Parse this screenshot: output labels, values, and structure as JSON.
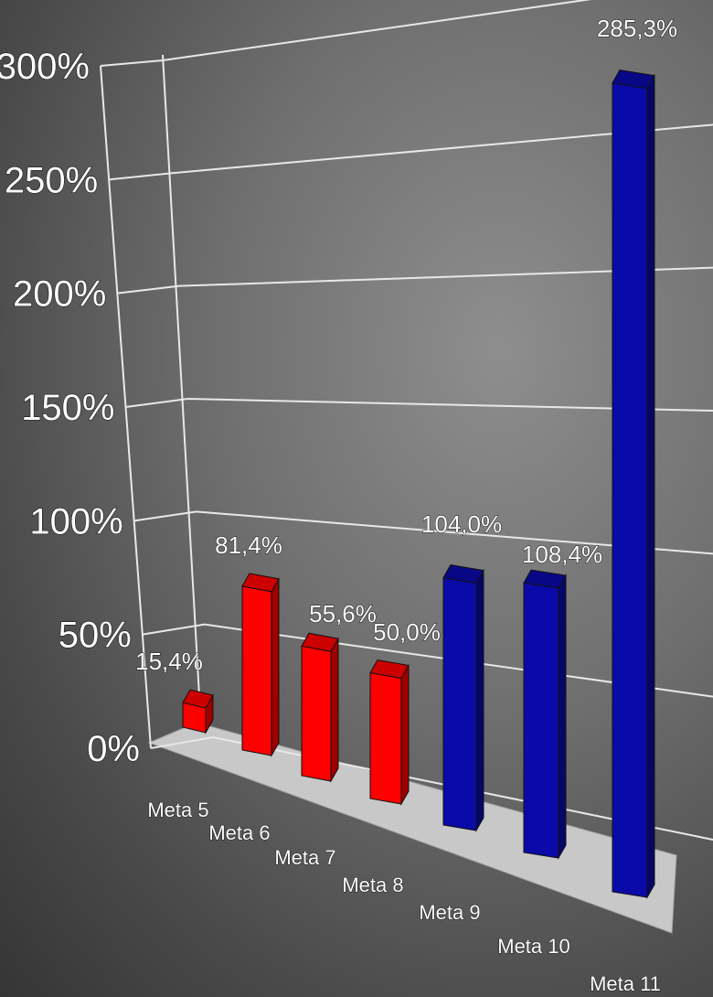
{
  "chart_data": {
    "type": "bar",
    "title": "",
    "xlabel": "",
    "ylabel": "",
    "ylim": [
      0,
      300
    ],
    "yticks": [
      "0%",
      "50%",
      "100%",
      "150%",
      "200%",
      "250%",
      "300%"
    ],
    "categories": [
      "Meta 5",
      "Meta 6",
      "Meta 7",
      "Meta 8",
      "Meta 9",
      "Meta 10",
      "Meta 11"
    ],
    "values": [
      15.4,
      81.4,
      55.6,
      50.0,
      104.0,
      108.4,
      285.3
    ],
    "value_labels": [
      "15,4%",
      "81,4%",
      "55,6%",
      "50,0%",
      "104,0%",
      "108,4%",
      "285,3%"
    ],
    "bar_colors": [
      "#ff0000",
      "#ff0000",
      "#ff0000",
      "#ff0000",
      "#0a0aa8",
      "#0a0aa8",
      "#0a0aa8"
    ],
    "grid": true,
    "legend": "none",
    "style": "3d-column"
  }
}
